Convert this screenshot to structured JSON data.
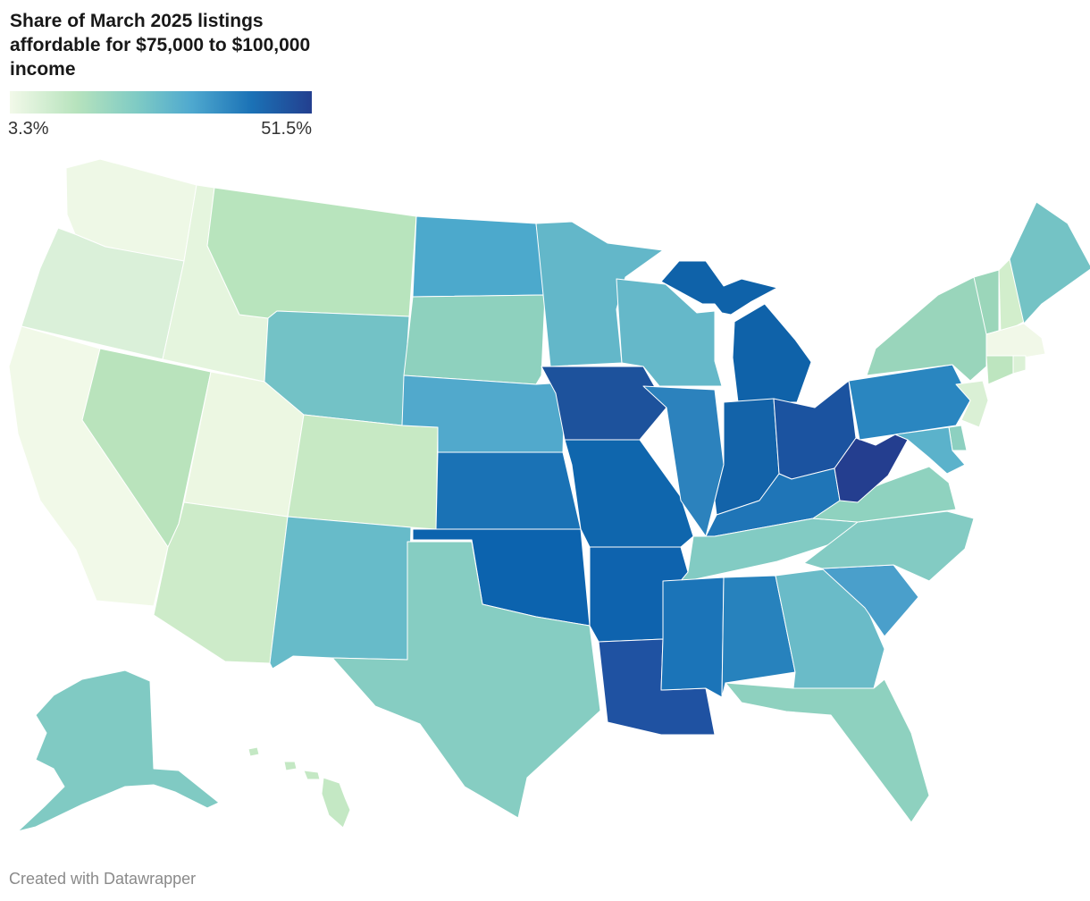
{
  "title": "Share of March 2025 listings affordable for $75,000 to $100,000 income",
  "legend": {
    "min_label": "3.3%",
    "max_label": "51.5%",
    "min": 3.3,
    "max": 51.5
  },
  "colors": {
    "scale": [
      "#f2f9e9",
      "#b7e3bd",
      "#7fcbc4",
      "#4fa9cf",
      "#1b72b6",
      "#233f8f"
    ],
    "border": "#ffffff"
  },
  "credit": "Created with Datawrapper",
  "states": [
    {
      "id": "WA",
      "color": "#eef8e6"
    },
    {
      "id": "OR",
      "color": "#daf0d9"
    },
    {
      "id": "CA",
      "color": "#f1f9e8"
    },
    {
      "id": "ID",
      "color": "#e5f5de"
    },
    {
      "id": "NV",
      "color": "#b9e3bc"
    },
    {
      "id": "UT",
      "color": "#ecf7e2"
    },
    {
      "id": "AZ",
      "color": "#cdebc9"
    },
    {
      "id": "MT",
      "color": "#b8e4bd"
    },
    {
      "id": "WY",
      "color": "#73c2c6"
    },
    {
      "id": "CO",
      "color": "#c7e9c4"
    },
    {
      "id": "NM",
      "color": "#67bbc9"
    },
    {
      "id": "ND",
      "color": "#4ca9cc"
    },
    {
      "id": "SD",
      "color": "#8ed1be"
    },
    {
      "id": "NE",
      "color": "#51a9cc"
    },
    {
      "id": "KS",
      "color": "#1a72b5"
    },
    {
      "id": "OK",
      "color": "#0c63ae"
    },
    {
      "id": "TX",
      "color": "#86cdc2"
    },
    {
      "id": "MN",
      "color": "#63b7c9"
    },
    {
      "id": "IA",
      "color": "#1d529c"
    },
    {
      "id": "MO",
      "color": "#0f66ad"
    },
    {
      "id": "AR",
      "color": "#0e63ae"
    },
    {
      "id": "LA",
      "color": "#1f52a2"
    },
    {
      "id": "WI",
      "color": "#65b8c9"
    },
    {
      "id": "IL",
      "color": "#2c82bd"
    },
    {
      "id": "MI",
      "color": "#0f62a9"
    },
    {
      "id": "IN",
      "color": "#1363a9"
    },
    {
      "id": "OH",
      "color": "#1b53a0"
    },
    {
      "id": "KY",
      "color": "#1f75b7"
    },
    {
      "id": "TN",
      "color": "#82cbc3"
    },
    {
      "id": "MS",
      "color": "#1b74b8"
    },
    {
      "id": "AL",
      "color": "#2782bd"
    },
    {
      "id": "GA",
      "color": "#6abbc8"
    },
    {
      "id": "FL",
      "color": "#8ed1bf"
    },
    {
      "id": "SC",
      "color": "#4a9fcb"
    },
    {
      "id": "NC",
      "color": "#83cbc3"
    },
    {
      "id": "VA",
      "color": "#8fd2bf"
    },
    {
      "id": "WV",
      "color": "#243e8f"
    },
    {
      "id": "PA",
      "color": "#2a86c0"
    },
    {
      "id": "NY",
      "color": "#99d5bb"
    },
    {
      "id": "VT",
      "color": "#9bd6ba"
    },
    {
      "id": "NH",
      "color": "#d2eecc"
    },
    {
      "id": "ME",
      "color": "#74c3c5"
    },
    {
      "id": "MA",
      "color": "#f1f8e8"
    },
    {
      "id": "CT",
      "color": "#bde5bf"
    },
    {
      "id": "RI",
      "color": "#dbf1d6"
    },
    {
      "id": "NJ",
      "color": "#daf0d5"
    },
    {
      "id": "DE",
      "color": "#8dd0c0"
    },
    {
      "id": "MD",
      "color": "#5bb2cb"
    },
    {
      "id": "AK",
      "color": "#80cac3"
    },
    {
      "id": "HI",
      "color": "#c4e8c4"
    }
  ]
}
